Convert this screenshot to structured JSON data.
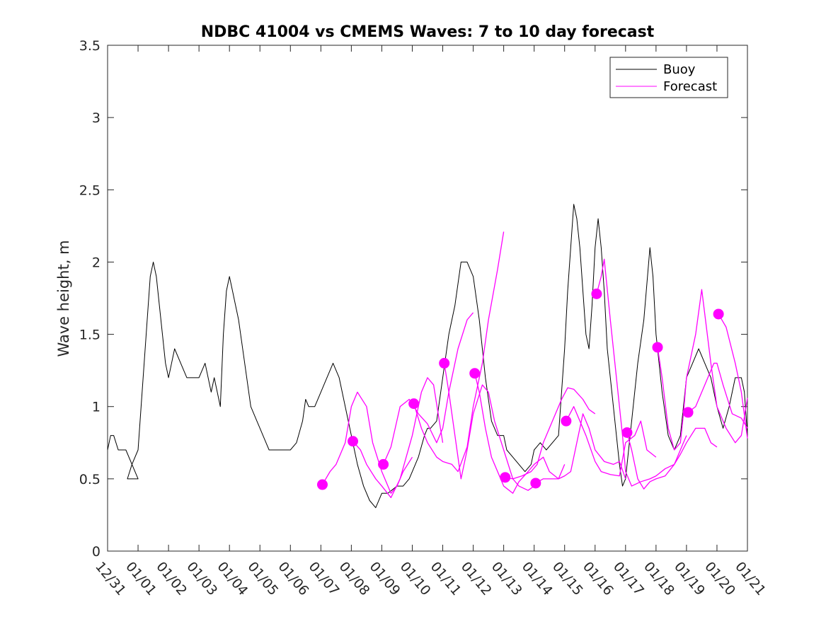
{
  "chart_data": {
    "type": "line",
    "title": "NDBC 41004 vs CMEMS Waves: 7 to 10 day forecast",
    "xlabel": "",
    "ylabel": "Wave height, m",
    "xlim": [
      0,
      21
    ],
    "ylim": [
      0,
      3.5
    ],
    "x_ticks": [
      0,
      1,
      2,
      3,
      4,
      5,
      6,
      7,
      8,
      9,
      10,
      11,
      12,
      13,
      14,
      15,
      16,
      17,
      18,
      19,
      20,
      21
    ],
    "x_tick_labels": [
      "12/31",
      "01/01",
      "01/02",
      "01/03",
      "01/04",
      "01/05",
      "01/06",
      "01/07",
      "01/08",
      "01/09",
      "01/10",
      "01/11",
      "01/12",
      "01/13",
      "01/14",
      "01/15",
      "01/16",
      "01/17",
      "01/18",
      "01/19",
      "01/20",
      "01/21"
    ],
    "y_ticks": [
      0,
      0.5,
      1,
      1.5,
      2,
      2.5,
      3,
      3.5
    ],
    "y_tick_labels": [
      "0",
      "0.5",
      "1",
      "1.5",
      "2",
      "2.5",
      "3",
      "3.5"
    ],
    "legend": {
      "position": "top-right",
      "entries": [
        "Buoy",
        "Forecast"
      ]
    },
    "colors": {
      "buoy": "#000000",
      "forecast": "#ff00ff",
      "axis": "#262626"
    },
    "series": [
      {
        "name": "Buoy",
        "color": "#000000",
        "x": [
          0,
          0.1,
          0.2,
          0.35,
          0.5,
          0.6,
          0.8,
          1.0,
          0.65,
          0.8,
          1.0,
          1.1,
          1.2,
          1.3,
          1.4,
          1.5,
          1.6,
          1.7,
          1.8,
          1.9,
          2.0,
          2.1,
          2.2,
          2.4,
          2.6,
          2.8,
          3.0,
          3.2,
          3.4,
          3.5,
          3.6,
          3.7,
          3.8,
          3.9,
          4.0,
          4.1,
          4.2,
          4.3,
          4.5,
          4.7,
          4.9,
          5.0,
          5.1,
          5.2,
          5.3,
          5.5,
          5.8,
          6.0,
          6.2,
          6.4,
          6.5,
          6.6,
          6.8,
          7.0,
          7.2,
          7.4,
          7.6,
          7.8,
          8.0,
          8.2,
          8.4,
          8.6,
          8.8,
          9.0,
          9.2,
          9.5,
          9.7,
          9.9,
          10.0,
          10.2,
          10.4,
          10.5,
          10.6,
          10.8,
          11.0,
          11.2,
          11.4,
          11.6,
          11.8,
          12.0,
          12.2,
          12.4,
          12.6,
          12.8,
          13.0,
          13.1,
          13.3,
          13.5,
          13.7,
          13.9,
          14.0,
          14.2,
          14.4,
          14.6,
          14.8,
          15.0,
          15.1,
          15.2,
          15.3,
          15.4,
          15.5,
          15.6,
          15.7,
          15.8,
          15.9,
          16.0,
          16.1,
          16.2,
          16.3,
          16.4,
          16.6,
          16.8,
          16.9,
          17.0,
          17.2,
          17.4,
          17.6,
          17.8,
          17.9,
          18.0,
          18.2,
          18.4,
          18.6,
          18.8,
          19.0,
          19.2,
          19.4,
          19.6,
          19.8,
          20.0,
          20.2,
          20.4,
          20.6,
          20.8,
          20.9,
          21.0
        ],
        "y": [
          0.7,
          0.8,
          0.8,
          0.7,
          0.7,
          0.7,
          0.6,
          0.5,
          0.5,
          0.6,
          0.7,
          1.0,
          1.3,
          1.6,
          1.9,
          2.0,
          1.9,
          1.7,
          1.5,
          1.3,
          1.2,
          1.3,
          1.4,
          1.3,
          1.2,
          1.2,
          1.2,
          1.3,
          1.1,
          1.2,
          1.1,
          1.0,
          1.5,
          1.8,
          1.9,
          1.8,
          1.7,
          1.6,
          1.3,
          1.0,
          0.9,
          0.85,
          0.8,
          0.75,
          0.7,
          0.7,
          0.7,
          0.7,
          0.75,
          0.9,
          1.05,
          1.0,
          1.0,
          1.1,
          1.2,
          1.3,
          1.2,
          1.0,
          0.8,
          0.6,
          0.45,
          0.35,
          0.3,
          0.4,
          0.4,
          0.45,
          0.45,
          0.5,
          0.55,
          0.65,
          0.8,
          0.85,
          0.85,
          0.9,
          1.2,
          1.5,
          1.7,
          2.0,
          2.0,
          1.9,
          1.6,
          1.2,
          0.9,
          0.8,
          0.8,
          0.7,
          0.65,
          0.6,
          0.55,
          0.6,
          0.7,
          0.75,
          0.7,
          0.75,
          0.8,
          1.4,
          1.8,
          2.1,
          2.4,
          2.3,
          2.1,
          1.8,
          1.5,
          1.4,
          1.7,
          2.1,
          2.3,
          2.1,
          1.8,
          1.4,
          1.0,
          0.6,
          0.45,
          0.5,
          0.9,
          1.3,
          1.6,
          2.1,
          1.9,
          1.5,
          1.1,
          0.8,
          0.7,
          0.8,
          1.2,
          1.3,
          1.4,
          1.3,
          1.2,
          1.0,
          0.85,
          1.0,
          1.2,
          1.2,
          1.1,
          0.8
        ]
      },
      {
        "name": "Forecast",
        "color": "#ff00ff",
        "segments": [
          {
            "x": [
              7.05,
              7.3,
              7.5,
              7.8,
              8.0,
              8.2,
              8.5,
              8.7,
              9.0,
              9.3,
              9.5,
              9.7,
              10.0
            ],
            "y": [
              0.46,
              0.55,
              0.6,
              0.75,
              1.0,
              1.1,
              1.0,
              0.75,
              0.55,
              0.4,
              0.45,
              0.55,
              0.65
            ]
          },
          {
            "x": [
              8.05,
              8.3,
              8.5,
              8.8,
              9.0,
              9.3,
              9.6,
              9.8,
              10.0,
              10.3,
              10.5,
              10.7,
              11.0
            ],
            "y": [
              0.76,
              0.7,
              0.6,
              0.5,
              0.45,
              0.37,
              0.5,
              0.65,
              0.8,
              1.1,
              1.2,
              1.15,
              0.75
            ]
          },
          {
            "x": [
              9.05,
              9.3,
              9.6,
              9.9,
              10.0,
              10.2,
              10.5,
              10.8,
              11.0,
              11.2,
              11.5,
              11.8,
              12.0
            ],
            "y": [
              0.6,
              0.72,
              1.0,
              1.05,
              1.02,
              0.95,
              0.88,
              0.75,
              0.85,
              1.1,
              1.4,
              1.6,
              1.65
            ]
          },
          {
            "x": [
              10.05,
              10.3,
              10.5,
              10.8,
              11.0,
              11.3,
              11.5,
              11.8,
              12.0,
              12.3,
              12.5,
              12.8,
              13.0
            ],
            "y": [
              1.02,
              0.85,
              0.75,
              0.65,
              0.62,
              0.6,
              0.55,
              0.72,
              1.0,
              1.3,
              1.6,
              1.95,
              2.21
            ]
          },
          {
            "x": [
              11.05,
              11.2,
              11.4,
              11.6,
              11.8,
              12.0,
              12.3,
              12.5,
              12.7,
              13.0,
              13.3,
              13.5,
              13.8,
              14.0
            ],
            "y": [
              1.3,
              1.1,
              0.8,
              0.5,
              0.7,
              0.95,
              1.15,
              1.1,
              0.9,
              0.7,
              0.5,
              0.45,
              0.42,
              0.45
            ]
          },
          {
            "x": [
              12.05,
              12.2,
              12.4,
              12.6,
              12.8,
              13.0,
              13.3,
              13.5,
              13.8,
              14.0,
              14.3,
              14.5,
              14.8,
              15.0
            ],
            "y": [
              1.23,
              1.1,
              0.85,
              0.65,
              0.55,
              0.45,
              0.4,
              0.48,
              0.55,
              0.6,
              0.65,
              0.55,
              0.5,
              0.6
            ]
          },
          {
            "x": [
              13.05,
              13.3,
              13.6,
              13.9,
              14.1,
              14.3,
              14.6,
              14.9,
              15.1,
              15.3,
              15.6,
              15.8,
              16.0
            ],
            "y": [
              0.51,
              0.5,
              0.52,
              0.55,
              0.6,
              0.75,
              0.9,
              1.05,
              1.13,
              1.12,
              1.05,
              0.98,
              0.95
            ]
          },
          {
            "x": [
              14.05,
              14.3,
              14.5,
              14.8,
              15.0,
              15.2,
              15.4,
              15.6,
              15.8,
              16.0,
              16.3,
              16.6,
              16.8,
              17.0
            ],
            "y": [
              0.47,
              0.5,
              0.5,
              0.5,
              0.52,
              0.55,
              0.75,
              0.95,
              0.85,
              0.7,
              0.62,
              0.6,
              0.62,
              0.5
            ]
          },
          {
            "x": [
              15.05,
              15.3,
              15.5,
              15.7,
              16.0,
              16.2,
              16.5,
              16.8,
              17.0,
              17.3,
              17.5,
              17.7,
              18.0
            ],
            "y": [
              0.9,
              1.0,
              0.9,
              0.8,
              0.62,
              0.55,
              0.53,
              0.52,
              0.75,
              0.8,
              0.9,
              0.7,
              0.65
            ]
          },
          {
            "x": [
              16.05,
              16.2,
              16.3,
              16.5,
              16.7,
              16.9,
              17.0,
              17.2,
              17.5,
              17.8,
              18.0,
              18.3,
              18.6,
              18.9,
              19.0
            ],
            "y": [
              1.78,
              1.9,
              2.02,
              1.6,
              1.2,
              0.8,
              0.55,
              0.45,
              0.48,
              0.5,
              0.52,
              0.57,
              0.6,
              0.75,
              0.8
            ]
          },
          {
            "x": [
              17.05,
              17.2,
              17.4,
              17.6,
              17.8,
              18.0,
              18.3,
              18.6,
              18.8,
              19.0,
              19.3,
              19.6,
              19.8,
              20.0
            ],
            "y": [
              0.82,
              0.7,
              0.5,
              0.43,
              0.48,
              0.5,
              0.52,
              0.6,
              0.67,
              0.75,
              0.85,
              0.85,
              0.75,
              0.72
            ]
          },
          {
            "x": [
              18.05,
              18.2,
              18.4,
              18.6,
              18.8,
              18.9,
              19.0,
              19.3,
              19.5,
              19.8,
              20.0,
              20.3,
              20.6,
              20.8,
              21.0
            ],
            "y": [
              1.41,
              1.2,
              0.85,
              0.7,
              0.75,
              0.95,
              1.2,
              1.5,
              1.81,
              1.3,
              1.0,
              0.85,
              0.75,
              0.8,
              1.06
            ]
          },
          {
            "x": [
              19.05,
              19.3,
              19.6,
              19.9,
              20.0,
              20.2,
              20.5,
              20.8,
              21.0
            ],
            "y": [
              0.96,
              1.0,
              1.15,
              1.3,
              1.3,
              1.15,
              0.95,
              0.92,
              0.85
            ]
          },
          {
            "x": [
              20.05,
              20.3,
              20.6,
              20.8,
              21.0
            ],
            "y": [
              1.64,
              1.55,
              1.3,
              1.1,
              0.78
            ]
          }
        ],
        "markers": {
          "x": [
            7.05,
            8.05,
            9.05,
            10.05,
            11.05,
            12.05,
            13.05,
            14.05,
            15.05,
            16.05,
            17.05,
            18.05,
            19.05,
            20.05
          ],
          "y": [
            0.46,
            0.76,
            0.6,
            1.02,
            1.3,
            1.23,
            0.51,
            0.47,
            0.9,
            1.78,
            0.82,
            1.41,
            0.96,
            1.64
          ]
        }
      }
    ]
  }
}
